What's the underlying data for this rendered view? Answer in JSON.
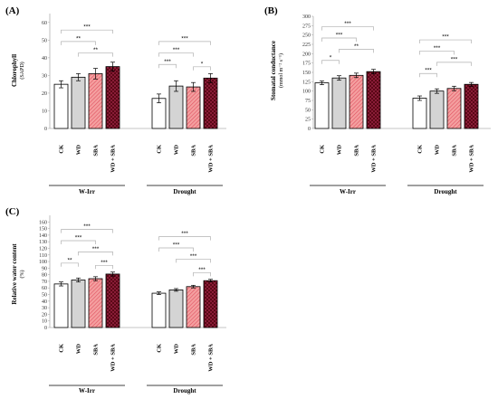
{
  "figure": {
    "colors": {
      "CK": "#ffffff",
      "WD": "#d4d4d4",
      "SBA": "#f08080",
      "WD + SBA": "#8b0a1e"
    },
    "axis_color": "#b0b0b0"
  },
  "chart_data": [
    {
      "panel_label": "(A)",
      "type": "bar",
      "ylabel": "Chlorophyll",
      "ysub": "(SAPD)",
      "ylim": [
        0,
        65
      ],
      "yticks": [
        0,
        10,
        20,
        30,
        40,
        50,
        60
      ],
      "categories": [
        "CK",
        "WD",
        "SBA",
        "WD + SBA"
      ],
      "groups": [
        {
          "name": "W-Irr",
          "values": [
            25,
            29,
            31,
            35
          ],
          "errors": [
            2,
            2,
            3,
            2.5
          ]
        },
        {
          "name": "Drought",
          "values": [
            17,
            24,
            23.5,
            28.5
          ],
          "errors": [
            2.5,
            3,
            2.5,
            2.5
          ]
        }
      ],
      "significance": [
        {
          "group": 0,
          "from": 0,
          "to": 3,
          "label": "***"
        },
        {
          "group": 0,
          "from": 1,
          "to": 3,
          "label": "**"
        },
        {
          "group": 0,
          "from": 0,
          "to": 2,
          "label": "**"
        },
        {
          "group": 1,
          "from": 0,
          "to": 3,
          "label": "***"
        },
        {
          "group": 1,
          "from": 0,
          "to": 2,
          "label": "***"
        },
        {
          "group": 1,
          "from": 0,
          "to": 1,
          "label": "***"
        },
        {
          "group": 1,
          "from": 2,
          "to": 3,
          "label": "*"
        }
      ]
    },
    {
      "panel_label": "(B)",
      "type": "bar",
      "ylabel": "Stomatal conductance",
      "ysub": "(mmol m⁻² s⁻¹)",
      "ylim": [
        0,
        300
      ],
      "yticks": [
        0,
        25,
        50,
        75,
        100,
        125,
        150,
        175,
        200,
        225,
        250,
        275,
        300
      ],
      "categories": [
        "CK",
        "WD",
        "SBA",
        "WD + SBA"
      ],
      "groups": [
        {
          "name": "W-Irr",
          "values": [
            122,
            135,
            142,
            152
          ],
          "errors": [
            5,
            6,
            6,
            6
          ]
        },
        {
          "name": "Drought",
          "values": [
            81,
            100,
            107,
            118
          ],
          "errors": [
            6,
            6,
            6,
            5
          ]
        }
      ],
      "significance": [
        {
          "group": 0,
          "from": 0,
          "to": 3,
          "label": "***"
        },
        {
          "group": 0,
          "from": 1,
          "to": 3,
          "label": "**"
        },
        {
          "group": 0,
          "from": 0,
          "to": 2,
          "label": "***"
        },
        {
          "group": 0,
          "from": 0,
          "to": 1,
          "label": "*"
        },
        {
          "group": 1,
          "from": 0,
          "to": 3,
          "label": "***"
        },
        {
          "group": 1,
          "from": 1,
          "to": 3,
          "label": "***"
        },
        {
          "group": 1,
          "from": 0,
          "to": 2,
          "label": "***"
        },
        {
          "group": 1,
          "from": 0,
          "to": 1,
          "label": "***"
        }
      ]
    },
    {
      "panel_label": "(C)",
      "type": "bar",
      "ylabel": "Relative water content",
      "ysub": "(%)",
      "ylim": [
        0,
        170
      ],
      "yticks": [
        0,
        10,
        20,
        30,
        40,
        50,
        60,
        70,
        80,
        90,
        100,
        110,
        120,
        130,
        140,
        150,
        160
      ],
      "categories": [
        "CK",
        "WD",
        "SBA",
        "WD + SBA"
      ],
      "groups": [
        {
          "name": "W-Irr",
          "values": [
            66,
            72,
            74,
            81
          ],
          "errors": [
            3,
            3,
            3,
            3
          ]
        },
        {
          "name": "Drought",
          "values": [
            52,
            57,
            62,
            71
          ],
          "errors": [
            2,
            2,
            2,
            2
          ]
        }
      ],
      "significance": [
        {
          "group": 0,
          "from": 0,
          "to": 3,
          "label": "***"
        },
        {
          "group": 0,
          "from": 1,
          "to": 3,
          "label": "***"
        },
        {
          "group": 0,
          "from": 0,
          "to": 2,
          "label": "***"
        },
        {
          "group": 0,
          "from": 0,
          "to": 1,
          "label": "**"
        },
        {
          "group": 0,
          "from": 2,
          "to": 3,
          "label": "***"
        },
        {
          "group": 1,
          "from": 0,
          "to": 3,
          "label": "***"
        },
        {
          "group": 1,
          "from": 1,
          "to": 3,
          "label": "***"
        },
        {
          "group": 1,
          "from": 0,
          "to": 2,
          "label": "***"
        },
        {
          "group": 1,
          "from": 2,
          "to": 3,
          "label": "***"
        }
      ]
    }
  ]
}
